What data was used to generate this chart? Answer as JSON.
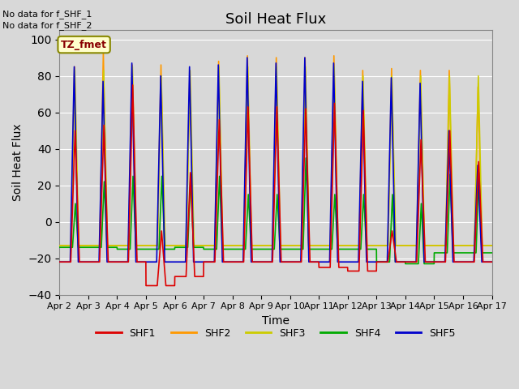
{
  "title": "Soil Heat Flux",
  "xlabel": "Time",
  "ylabel": "Soil Heat Flux",
  "ylim": [
    -40,
    105
  ],
  "yticks": [
    -40,
    -20,
    0,
    20,
    40,
    60,
    80,
    100
  ],
  "note_line1": "No data for f_SHF_1",
  "note_line2": "No data for f_SHF_2",
  "tz_label": "TZ_fmet",
  "legend_entries": [
    "SHF1",
    "SHF2",
    "SHF3",
    "SHF4",
    "SHF5"
  ],
  "colors": {
    "SHF1": "#dd0000",
    "SHF2": "#ff9900",
    "SHF3": "#cccc00",
    "SHF4": "#00aa00",
    "SHF5": "#0000cc"
  },
  "background_color": "#d8d8d8",
  "plot_bg_color": "#d8d8d8",
  "x_tick_labels": [
    "Apr 2",
    "Apr 3",
    "Apr 4",
    "Apr 5",
    "Apr 6",
    "Apr 7",
    "Apr 8",
    "Apr 9",
    "Apr 10",
    "Apr 11",
    "Apr 12",
    "Apr 13",
    "Apr 14",
    "Apr 15",
    "Apr 16",
    "Apr 17"
  ]
}
